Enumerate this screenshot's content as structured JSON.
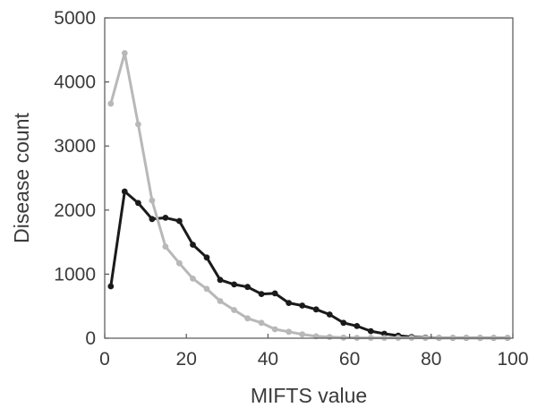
{
  "chart_data": {
    "type": "line",
    "xlabel": "MIFTS value",
    "ylabel": "Disease count",
    "xlim": [
      0,
      100
    ],
    "ylim": [
      0,
      5000
    ],
    "xticks": [
      0,
      20,
      40,
      60,
      80,
      100
    ],
    "yticks": [
      0,
      1000,
      2000,
      3000,
      4000,
      5000
    ],
    "grid": false,
    "legend": "none",
    "x": [
      1.5,
      4.9,
      8.2,
      11.6,
      14.9,
      18.3,
      21.6,
      25.0,
      28.3,
      31.7,
      35.0,
      38.4,
      41.7,
      45.1,
      48.4,
      51.8,
      55.1,
      58.5,
      61.8,
      65.2,
      68.5,
      71.9,
      75.2,
      78.6,
      81.9,
      85.3,
      88.6,
      92.0,
      95.3,
      98.7
    ],
    "series": [
      {
        "color": "#1a1a1a",
        "values": [
          810,
          2290,
          2110,
          1860,
          1880,
          1830,
          1460,
          1260,
          910,
          840,
          800,
          690,
          700,
          550,
          510,
          450,
          370,
          240,
          190,
          110,
          70,
          40,
          20,
          10,
          5,
          5,
          5,
          5,
          5,
          5
        ]
      },
      {
        "color": "#b8b8b8",
        "values": [
          3660,
          4450,
          3340,
          2150,
          1430,
          1170,
          930,
          770,
          580,
          440,
          310,
          240,
          140,
          100,
          60,
          30,
          20,
          10,
          5,
          5,
          5,
          5,
          5,
          5,
          5,
          5,
          5,
          5,
          5,
          5
        ]
      }
    ]
  }
}
